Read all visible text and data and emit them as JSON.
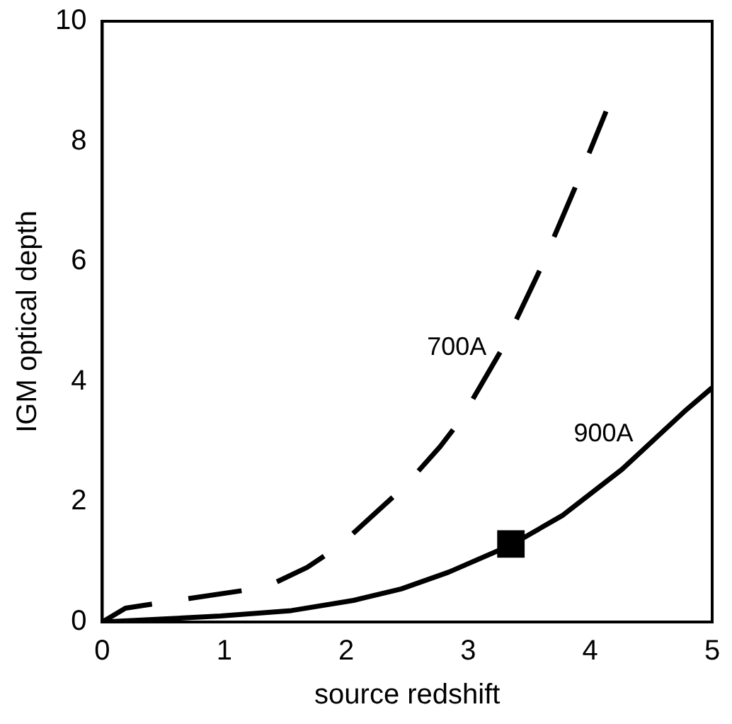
{
  "chart_data": {
    "type": "line",
    "xlabel": "source redshift",
    "ylabel": "IGM optical depth",
    "xlim": [
      0,
      5
    ],
    "xticks": [
      0,
      1,
      2,
      3,
      4,
      5
    ],
    "ylim": [
      0,
      10
    ],
    "yticks": [
      0,
      2,
      4,
      6,
      8,
      10
    ],
    "grid": false,
    "legend": false,
    "marker": "none",
    "series": [
      {
        "name": "700A",
        "color": "#000000",
        "line_style": "dashed",
        "x": [
          0,
          0.19,
          0.61,
          1.34,
          1.68,
          1.94,
          2.48,
          2.77,
          2.94,
          3.29,
          3.59,
          3.87,
          4.13
        ],
        "values": [
          0,
          0.23,
          0.36,
          0.58,
          0.91,
          1.26,
          2.26,
          2.92,
          3.37,
          4.59,
          5.87,
          7.2,
          8.5
        ]
      },
      {
        "name": "900A",
        "color": "#000000",
        "line_style": "solid",
        "x": [
          0,
          0.5,
          0.97,
          1.55,
          2.06,
          2.45,
          2.84,
          3.35,
          3.77,
          4.26,
          4.77,
          5
        ],
        "values": [
          0,
          0.05,
          0.1,
          0.19,
          0.36,
          0.55,
          0.83,
          1.28,
          1.77,
          2.54,
          3.5,
          3.9
        ]
      },
      {
        "type": "scatter",
        "marker": "square",
        "color": "#000000",
        "x": [
          3.35
        ],
        "values": [
          1.3
        ]
      }
    ]
  }
}
